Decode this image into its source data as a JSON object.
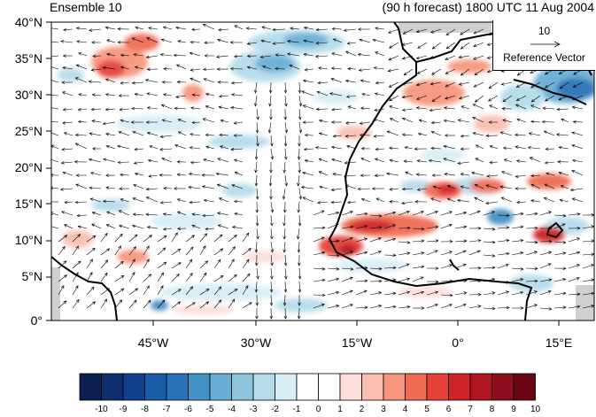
{
  "titles": {
    "left": "Ensemble 10",
    "right": "(90 h forecast) 1800 UTC 11 Aug 2004"
  },
  "axes": {
    "lat_labels": [
      "40°N",
      "35°N",
      "30°N",
      "25°N",
      "20°N",
      "15°N",
      "10°N",
      "5°N",
      "0°"
    ],
    "lon_labels": [
      "45°W",
      "30°W",
      "15°W",
      "0°",
      "15°E"
    ]
  },
  "reference_vector": {
    "value": "10",
    "label": "Reference Vector"
  },
  "colorbar": {
    "labels": [
      "-10",
      "-9",
      "-8",
      "-7",
      "-6",
      "-5",
      "-4",
      "-3",
      "-2",
      "-1",
      "0",
      "1",
      "2",
      "3",
      "4",
      "5",
      "6",
      "7",
      "8",
      "9",
      "10"
    ],
    "colors": [
      "#0a1f4d",
      "#0d2f6e",
      "#123f8a",
      "#1b5ca6",
      "#2a73b8",
      "#4592c6",
      "#6aaed6",
      "#8fc5dc",
      "#b6dcea",
      "#d8eef6",
      "#ffffff",
      "#ffffff",
      "#fde0dc",
      "#fbbfb0",
      "#f7967e",
      "#ef6d55",
      "#e4433a",
      "#cf2427",
      "#b21522",
      "#8c0e1c",
      "#6a0613"
    ]
  },
  "map": {
    "background": "#ffffff",
    "missing_color": "#d0d0d0",
    "coast_color": "#000000"
  }
}
